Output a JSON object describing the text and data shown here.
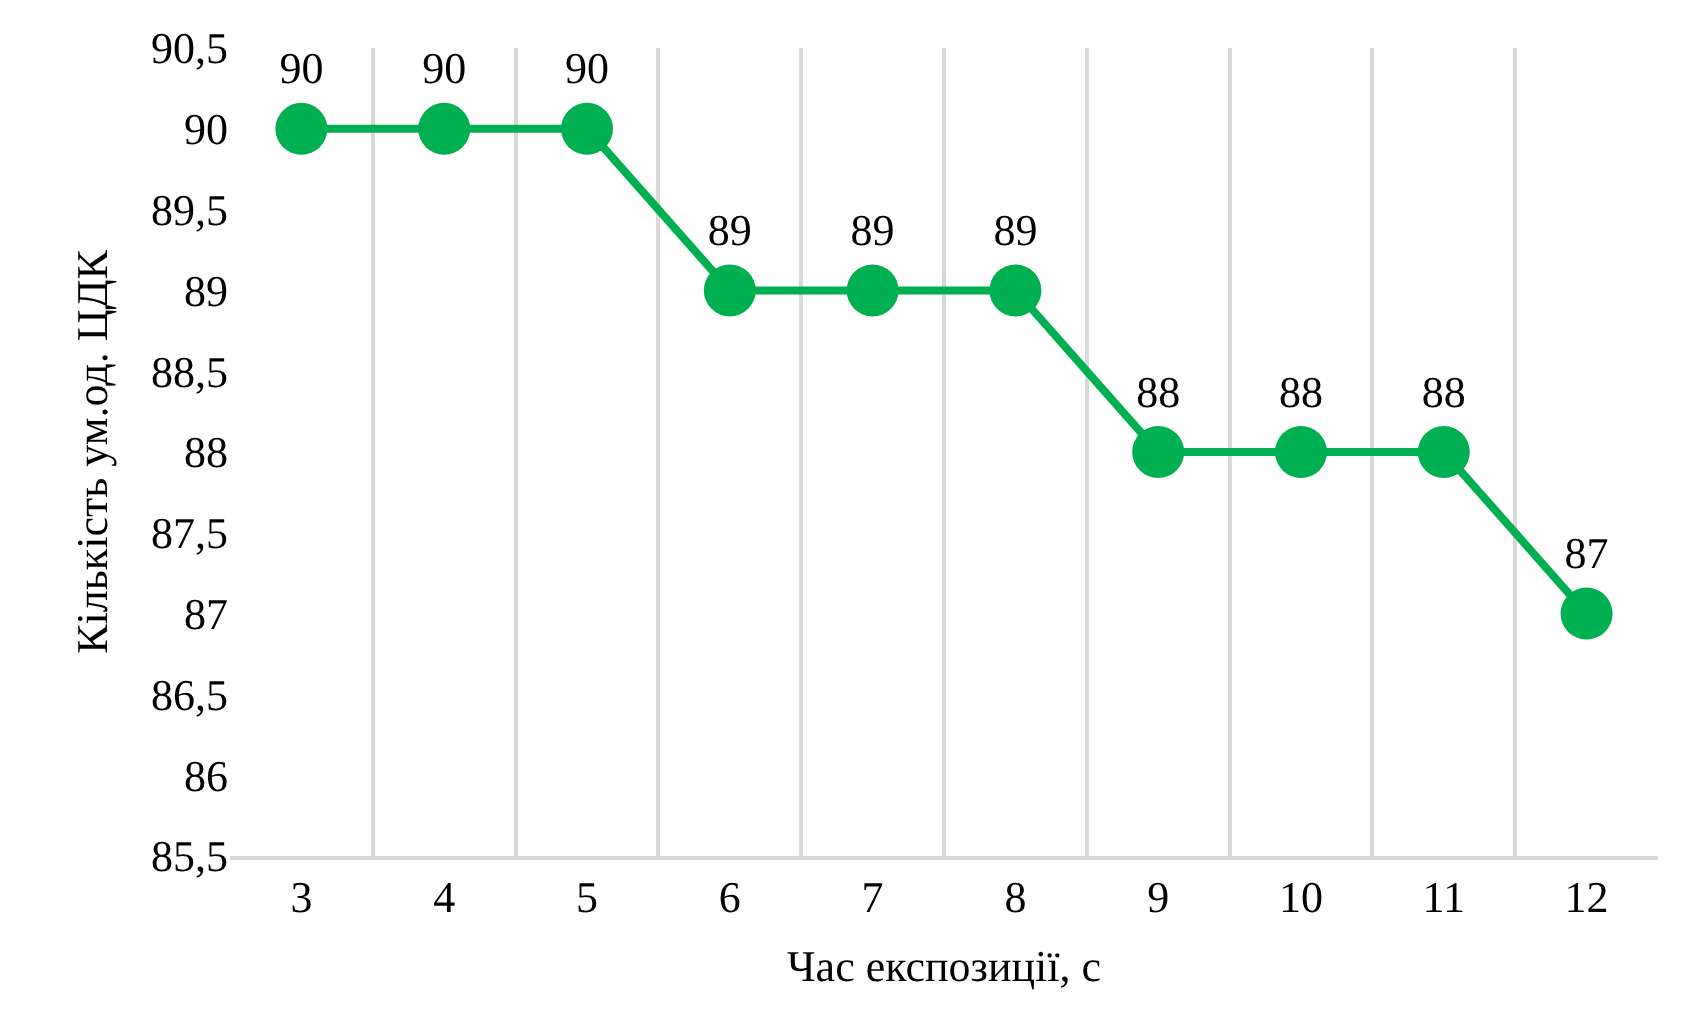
{
  "chart_data": {
    "type": "line",
    "xlabel": "Час експозиції, с",
    "ylabel": "Кількість ум.од. ЦДК",
    "categories": [
      "3",
      "4",
      "5",
      "6",
      "7",
      "8",
      "9",
      "10",
      "11",
      "12"
    ],
    "series": [
      {
        "color": "#00b050",
        "values": [
          90,
          90,
          90,
          89,
          89,
          89,
          88,
          88,
          88,
          87
        ]
      }
    ],
    "ylim": [
      85.5,
      90.5
    ],
    "yticks": [
      {
        "value": 85.5,
        "label": "85,5"
      },
      86,
      {
        "value": 86.5,
        "label": "86,5"
      },
      87,
      {
        "value": 87.5,
        "label": "87,5"
      },
      88,
      {
        "value": 88.5,
        "label": "88,5"
      },
      89,
      {
        "value": 89.5,
        "label": "89,5"
      },
      90,
      {
        "value": 90.5,
        "label": "90,5"
      }
    ],
    "grid": "x",
    "marker": "circle",
    "line_style": "solid",
    "data_labels": true
  }
}
